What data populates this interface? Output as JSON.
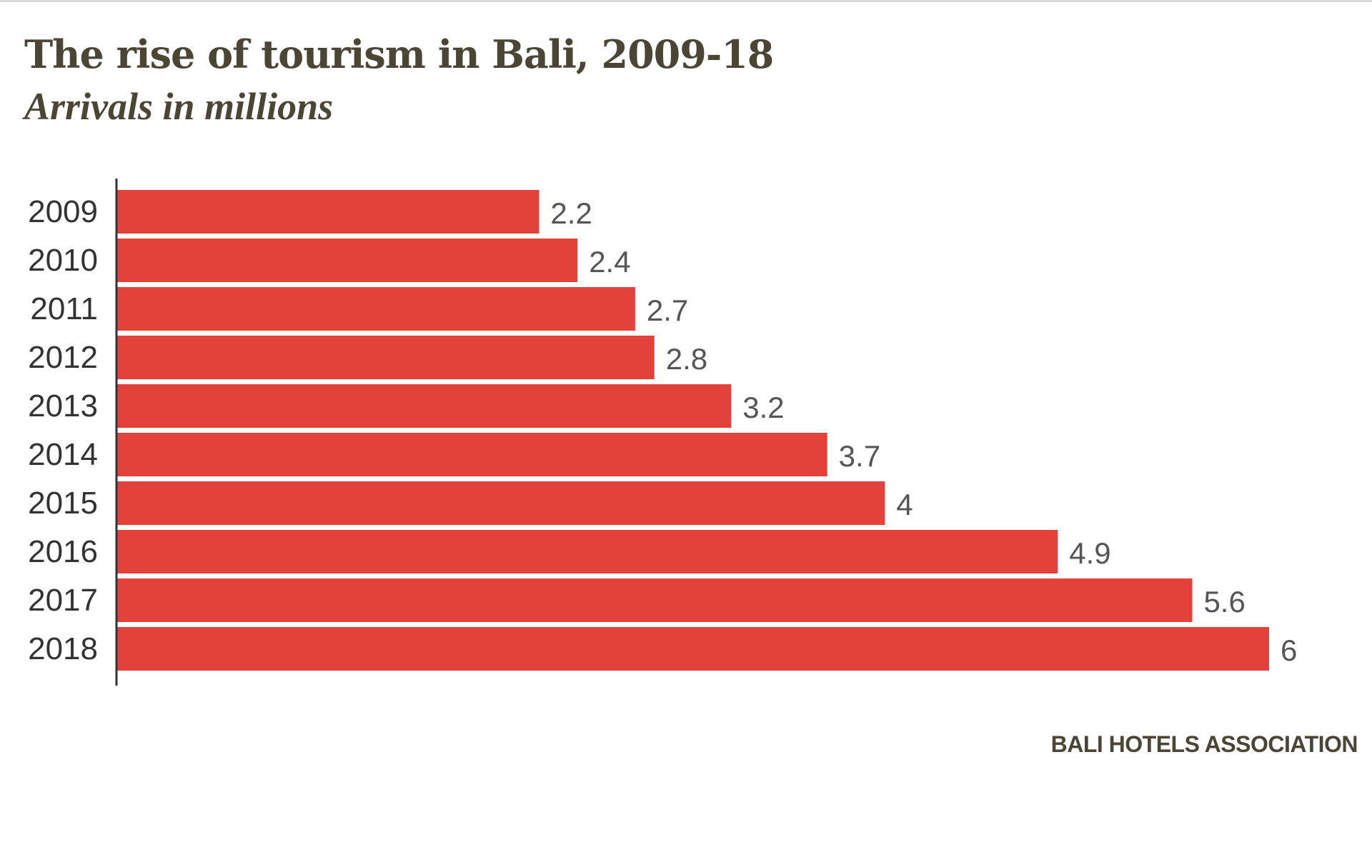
{
  "chart_data": {
    "type": "bar",
    "orientation": "horizontal",
    "title": "The rise of tourism in Bali, 2009-18",
    "subtitle": "Arrivals in millions",
    "categories": [
      "2009",
      "2010",
      "2011",
      "2012",
      "2013",
      "2014",
      "2015",
      "2016",
      "2017",
      "2018"
    ],
    "values": [
      2.2,
      2.4,
      2.7,
      2.8,
      3.2,
      3.7,
      4,
      4.9,
      5.6,
      6
    ],
    "value_labels": [
      "2.2",
      "2.4",
      "2.7",
      "2.8",
      "3.2",
      "3.7",
      "4",
      "4.9",
      "5.6",
      "6"
    ],
    "xlabel": "",
    "ylabel": "",
    "xlim": [
      0,
      6
    ],
    "grid": false,
    "legend": "none",
    "source": "BALI HOTELS ASSOCIATION",
    "colors": {
      "bar": "#e3423b",
      "text": "#333333",
      "title": "#4a4535",
      "axis": "#333333"
    }
  }
}
